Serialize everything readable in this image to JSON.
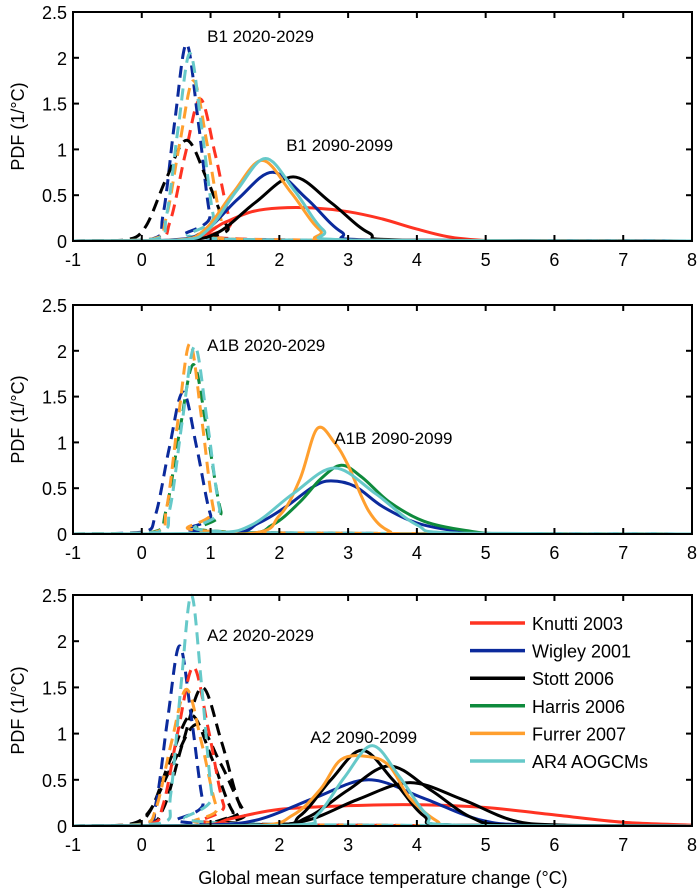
{
  "chart_data": {
    "type": "line",
    "xlabel": "Global mean surface temperature change (°C)",
    "ylabel": "PDF (1/°C)",
    "xlim": [
      -1,
      8
    ],
    "ylim": [
      0,
      2.5
    ],
    "xticks": [
      "-1",
      "0",
      "1",
      "2",
      "3",
      "4",
      "5",
      "6",
      "7",
      "8"
    ],
    "yticks": [
      "0",
      "0.5",
      "1",
      "1.5",
      "2",
      "2.5"
    ],
    "grid": false,
    "legend_placement": "right (bottom panel)",
    "legend": [
      {
        "name": "Knutti 2003",
        "color": "#ff3322"
      },
      {
        "name": "Wigley 2001",
        "color": "#0b2a9c"
      },
      {
        "name": "Stott 2006",
        "color": "#000000"
      },
      {
        "name": "Harris 2006",
        "color": "#0e8a3c"
      },
      {
        "name": "Furrer 2007",
        "color": "#ff9f2e"
      },
      {
        "name": "AR4 AOGCMs",
        "color": "#66c9c9"
      }
    ],
    "line_styles": {
      "2020-2029": "dashed",
      "2090-2099": "solid"
    },
    "panels": [
      {
        "scenario": "B1",
        "labels": [
          "B1 2020-2029",
          "B1 2090-2099"
        ],
        "curves": [
          {
            "model": "Knutti 2003",
            "period": "2020-2029",
            "x": [
              0.19,
              0.41,
              0.63,
              0.85,
              1.07,
              1.29,
              1.51
            ],
            "y": [
              0.02,
              0.21,
              0.94,
              1.55,
              0.94,
              0.21,
              0.02
            ]
          },
          {
            "model": "Wigley 2001",
            "period": "2020-2029",
            "x": [
              0.14,
              0.31,
              0.48,
              0.65,
              0.82,
              0.99,
              1.16
            ],
            "y": [
              0.02,
              0.29,
              1.31,
              2.15,
              1.31,
              0.29,
              0.02
            ]
          },
          {
            "model": "Stott 2006",
            "period": "2020-2029",
            "x": [
              -0.25,
              0.05,
              0.35,
              0.65,
              0.95,
              1.25,
              1.55
            ],
            "y": [
              0.01,
              0.15,
              0.67,
              1.1,
              0.67,
              0.15,
              0.01
            ]
          },
          {
            "model": "Furrer 2007",
            "period": "2020-2029",
            "x": [
              0.15,
              0.35,
              0.55,
              0.75,
              0.95,
              1.15,
              1.35
            ],
            "y": [
              0.02,
              0.24,
              1.06,
              1.75,
              1.06,
              0.24,
              0.02
            ]
          },
          {
            "model": "AR4 AOGCMs",
            "period": "2020-2029",
            "x": [
              0.19,
              0.36,
              0.53,
              0.7,
              0.87,
              1.04,
              1.21
            ],
            "y": [
              0.02,
              0.28,
              1.24,
              2.05,
              1.24,
              0.28,
              0.02
            ]
          },
          {
            "model": "Knutti 2003",
            "period": "2090-2099",
            "x": [
              0.6,
              1.2,
              1.6,
              2.0,
              2.5,
              3.0,
              3.5,
              4.0,
              4.6,
              5.5
            ],
            "y": [
              0,
              0.2,
              0.32,
              0.36,
              0.36,
              0.32,
              0.24,
              0.13,
              0.03,
              0
            ]
          },
          {
            "model": "Stott 2006",
            "period": "2090-2099",
            "x": [
              0.55,
              1.1,
              1.65,
              2.2,
              2.75,
              3.3,
              3.85
            ],
            "y": [
              0.01,
              0.09,
              0.42,
              0.7,
              0.42,
              0.09,
              0.01
            ]
          },
          {
            "model": "Wigley 2001",
            "period": "2090-2099",
            "x": [
              0.4,
              0.9,
              1.4,
              1.9,
              2.4,
              2.9,
              3.4
            ],
            "y": [
              0.01,
              0.1,
              0.46,
              0.75,
              0.46,
              0.1,
              0.01
            ]
          },
          {
            "model": "Furrer 2007",
            "period": "2090-2099",
            "x": [
              0.49,
              0.91,
              1.33,
              1.75,
              2.17,
              2.59,
              3.01
            ],
            "y": [
              0.01,
              0.12,
              0.53,
              0.88,
              0.53,
              0.12,
              0.01
            ]
          },
          {
            "model": "AR4 AOGCMs",
            "period": "2090-2099",
            "x": [
              0.54,
              0.96,
              1.38,
              1.8,
              2.22,
              2.64,
              3.06
            ],
            "y": [
              0.01,
              0.12,
              0.55,
              0.9,
              0.55,
              0.12,
              0.01
            ]
          }
        ]
      },
      {
        "scenario": "A1B",
        "labels": [
          "A1B 2020-2029",
          "A1B 2090-2099"
        ],
        "curves": [
          {
            "model": "Wigley 2001",
            "period": "2020-2029",
            "x": [
              0,
              0.2,
              0.4,
              0.6,
              0.8,
              1.0,
              1.2
            ],
            "y": [
              0.02,
              0.21,
              0.94,
              1.55,
              0.94,
              0.21,
              0.02
            ]
          },
          {
            "model": "Harris 2006",
            "period": "2020-2029",
            "x": [
              0.15,
              0.35,
              0.55,
              0.75,
              0.95,
              1.15,
              1.35
            ],
            "y": [
              0.02,
              0.25,
              1.12,
              1.85,
              1.12,
              0.25,
              0.02
            ]
          },
          {
            "model": "Furrer 2007",
            "period": "2020-2029",
            "x": [
              0.19,
              0.36,
              0.53,
              0.7,
              0.87,
              1.04,
              1.21
            ],
            "y": [
              0.02,
              0.28,
              1.26,
              2.08,
              1.26,
              0.28,
              0.02
            ]
          },
          {
            "model": "AR4 AOGCMs",
            "period": "2020-2029",
            "x": [
              0.23,
              0.41,
              0.59,
              0.77,
              0.95,
              1.13,
              1.31
            ],
            "y": [
              0.02,
              0.28,
              1.24,
              2.05,
              1.24,
              0.28,
              0.02
            ]
          },
          {
            "model": "Wigley 2001",
            "period": "2090-2099",
            "x": [
              1.2,
              1.7,
              2.1,
              2.5,
              2.75,
              3.1,
              3.5,
              4.0,
              4.6,
              5.2
            ],
            "y": [
              0,
              0.12,
              0.3,
              0.52,
              0.58,
              0.52,
              0.3,
              0.12,
              0.03,
              0
            ]
          },
          {
            "model": "Harris 2006",
            "period": "2090-2099",
            "x": [
              1.4,
              1.9,
              2.3,
              2.6,
              2.9,
              3.2,
              3.6,
              4.1,
              4.7,
              5.4
            ],
            "y": [
              0,
              0.1,
              0.35,
              0.6,
              0.75,
              0.62,
              0.35,
              0.14,
              0.04,
              0
            ]
          },
          {
            "model": "Furrer 2007",
            "period": "2090-2099",
            "x": [
              1.5,
              2.0,
              2.3,
              2.55,
              2.8,
              3.0,
              3.3,
              3.6,
              4.0
            ],
            "y": [
              0,
              0.2,
              0.6,
              1.15,
              1.0,
              0.75,
              0.25,
              0.03,
              0
            ]
          },
          {
            "model": "AR4 AOGCMs",
            "period": "2090-2099",
            "x": [
              1.0,
              1.6,
              2.2,
              2.8,
              3.4,
              4.0,
              4.6
            ],
            "y": [
              0.01,
              0.1,
              0.44,
              0.72,
              0.44,
              0.1,
              0.01
            ]
          }
        ]
      },
      {
        "scenario": "A2",
        "labels": [
          "A2 2020-2029",
          "A2 2090-2099"
        ],
        "curves": [
          {
            "model": "Stott 2006",
            "period": "2020-2029",
            "x": [
              -0.18,
              0.12,
              0.42,
              0.72,
              1.02,
              1.32,
              1.62
            ],
            "y": [
              0.01,
              0.16,
              0.73,
              1.2,
              0.73,
              0.16,
              0.01
            ]
          },
          {
            "model": "Stott 2006",
            "period": "2020-2029",
            "x": [
              0.04,
              0.32,
              0.6,
              0.88,
              1.16,
              1.44,
              1.72
            ],
            "y": [
              0.02,
              0.2,
              0.91,
              1.5,
              0.91,
              0.2,
              0.02
            ]
          },
          {
            "model": "Stott 2006",
            "period": "2020-2029",
            "x": [
              -0.25,
              0.1,
              0.45,
              0.8,
              1.15,
              1.5,
              1.85
            ],
            "y": [
              0.01,
              0.15,
              0.67,
              1.1,
              0.67,
              0.15,
              0.01
            ]
          },
          {
            "model": "Wigley 2001",
            "period": "2020-2029",
            "x": [
              0.04,
              0.21,
              0.38,
              0.55,
              0.72,
              0.89,
              1.06
            ],
            "y": [
              0.02,
              0.26,
              1.18,
              1.95,
              1.18,
              0.26,
              0.02
            ]
          },
          {
            "model": "Knutti 2003",
            "period": "2020-2029",
            "x": [
              0.09,
              0.31,
              0.53,
              0.75,
              0.97,
              1.19,
              1.41
            ],
            "y": [
              0.02,
              0.23,
              1.04,
              1.72,
              1.04,
              0.23,
              0.02
            ]
          },
          {
            "model": "Furrer 2007",
            "period": "2020-2029",
            "x": [
              -0.01,
              0.21,
              0.43,
              0.65,
              0.87,
              1.09,
              1.31
            ],
            "y": [
              0.02,
              0.2,
              0.9,
              1.48,
              0.9,
              0.2,
              0.02
            ]
          },
          {
            "model": "AR4 AOGCMs",
            "period": "2020-2029",
            "x": [
              0.27,
              0.42,
              0.57,
              0.72,
              0.87,
              1.02,
              1.17
            ],
            "y": [
              0.03,
              0.34,
              1.52,
              2.5,
              1.52,
              0.34,
              0.03
            ]
          },
          {
            "model": "Knutti 2003",
            "period": "2090-2099",
            "x": [
              0.8,
              1.3,
              2.0,
              3.0,
              4.0,
              5.0,
              6.0,
              7.0,
              8.0
            ],
            "y": [
              0,
              0.08,
              0.18,
              0.22,
              0.23,
              0.2,
              0.12,
              0.04,
              0.01
            ]
          },
          {
            "model": "Wigley 2001",
            "period": "2090-2099",
            "x": [
              0.9,
              1.7,
              2.5,
              3.3,
              4.1,
              4.9,
              5.7
            ],
            "y": [
              0.01,
              0.07,
              0.3,
              0.5,
              0.3,
              0.07,
              0.01
            ]
          },
          {
            "model": "Stott 2006",
            "period": "2090-2099",
            "x": [
              1.85,
              2.3,
              2.75,
              3.2,
              3.65,
              4.1,
              4.55
            ],
            "y": [
              0.01,
              0.11,
              0.5,
              0.82,
              0.5,
              0.11,
              0.01
            ]
          },
          {
            "model": "Stott 2006",
            "period": "2090-2099",
            "x": [
              1.8,
              2.4,
              3.0,
              3.6,
              4.2,
              4.8,
              5.4
            ],
            "y": [
              0.01,
              0.09,
              0.39,
              0.65,
              0.39,
              0.09,
              0.01
            ]
          },
          {
            "model": "Stott 2006",
            "period": "2090-2099",
            "x": [
              1.65,
              2.4,
              3.15,
              3.9,
              4.65,
              5.4,
              6.15
            ],
            "y": [
              0.01,
              0.06,
              0.29,
              0.47,
              0.29,
              0.06,
              0.01
            ]
          },
          {
            "model": "Furrer 2007",
            "period": "2090-2099",
            "x": [
              1.6,
              2.2,
              2.6,
              2.9,
              3.3,
              3.6,
              3.9,
              4.3,
              4.6
            ],
            "y": [
              0,
              0.12,
              0.4,
              0.72,
              0.75,
              0.65,
              0.3,
              0.05,
              0
            ]
          },
          {
            "model": "AR4 AOGCMs",
            "period": "2090-2099",
            "x": [
              2.15,
              2.55,
              2.95,
              3.35,
              3.75,
              4.15,
              4.55
            ],
            "y": [
              0.01,
              0.12,
              0.53,
              0.87,
              0.53,
              0.12,
              0.01
            ]
          }
        ]
      }
    ]
  }
}
